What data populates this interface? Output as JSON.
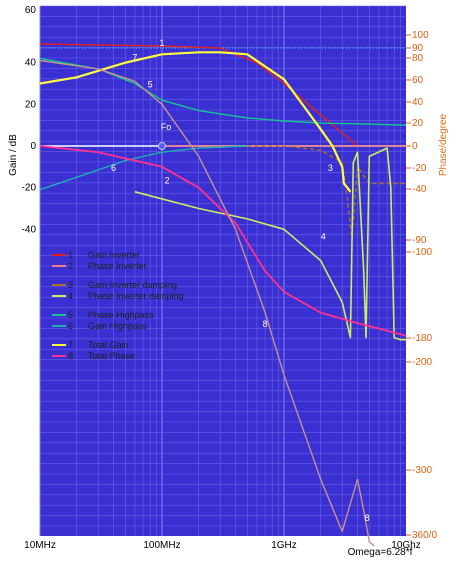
{
  "chart_data": {
    "type": "line",
    "left_axis": {
      "label": "Gain / dB",
      "ticks": [
        60,
        40,
        20,
        0,
        -20,
        -40
      ]
    },
    "right_axis": {
      "label": "Phase/degree",
      "ticks": [
        "100",
        "90",
        "80",
        "60",
        "40",
        "20",
        "0",
        "-20",
        "-40",
        "-90",
        "-100",
        "-180",
        "-200",
        "-300",
        "360/0"
      ]
    },
    "x_axis": {
      "label": "Omega=6.28*f",
      "scale": "log",
      "ticks": [
        "10MHz",
        "100MHz",
        "1GHz",
        "10Ghz"
      ]
    },
    "grid": true,
    "annotation": "Fo",
    "legend": [
      {
        "num": "1",
        "name": "Gain Inverter",
        "color": "#e02020"
      },
      {
        "num": "2",
        "name": "Phase Inverter",
        "color": "#f08080"
      },
      {
        "num": "3",
        "name": "Gain Inverter damping",
        "color": "#b07020"
      },
      {
        "num": "4",
        "name": "Phase Inverter damping",
        "color": "#c8f060"
      },
      {
        "num": "5",
        "name": "Phase Highpass",
        "color": "#10c890"
      },
      {
        "num": "6",
        "name": "Gain Highpass",
        "color": "#20b0b0"
      },
      {
        "num": "7",
        "name": "Total Gain",
        "color": "#ffff40"
      },
      {
        "num": "8",
        "name": "Total Phase",
        "color": "#ff3090"
      }
    ],
    "series": [
      {
        "id": "1",
        "color": "#e02020",
        "width": 1.4,
        "axis": "gain",
        "x": [
          10000000,
          30000000,
          100000000,
          300000000,
          600000000,
          1000000000,
          2000000000,
          4000000000
        ],
        "y": [
          49,
          48.5,
          48,
          47,
          40,
          30,
          15,
          0
        ]
      },
      {
        "id": "2",
        "color": "#f08080",
        "width": 1.4,
        "axis": "gain",
        "x": [
          100000000,
          1000000000,
          4000000000,
          10000000000
        ],
        "y": [
          0,
          0,
          0,
          0
        ]
      },
      {
        "id": "3",
        "color": "#b07020",
        "width": 1.4,
        "dash": "4,3",
        "axis": "gain",
        "x": [
          500000000,
          1000000000,
          2000000000,
          3000000000,
          3300000000,
          3600000000,
          4000000000,
          5000000000,
          10000000000
        ],
        "y": [
          0,
          0,
          -2,
          -8,
          -25,
          -45,
          -10,
          -18,
          -18
        ]
      },
      {
        "id": "4",
        "color": "#c8f060",
        "width": 1.6,
        "axis": "gain",
        "x": [
          60000000,
          200000000,
          500000000,
          1000000000,
          2000000000,
          3000000000,
          3500000000,
          3700000000,
          4000000000,
          4500000000,
          4700000000,
          5000000000,
          7000000000,
          7500000000,
          8000000000,
          9000000000,
          10000000000
        ],
        "y": [
          -22,
          -30,
          -35,
          -40,
          -55,
          -75,
          -92,
          -8,
          -3,
          -60,
          -92,
          -5,
          -1,
          -20,
          -92,
          -93,
          -93
        ]
      },
      {
        "id": "5",
        "color": "#10c890",
        "width": 1.4,
        "axis": "gain",
        "x": [
          10000000,
          30000000,
          60000000,
          100000000,
          200000000,
          500000000,
          1000000000,
          2000000000,
          5000000000,
          10000000000
        ],
        "y": [
          42,
          37,
          30,
          22,
          17,
          13.5,
          12,
          11,
          10.5,
          10
        ]
      },
      {
        "id": "6",
        "color": "#20b0b0",
        "width": 1.4,
        "axis": "gain",
        "x": [
          10000000,
          20000000,
          50000000,
          100000000,
          200000000,
          500000000
        ],
        "y": [
          -21,
          -15,
          -7,
          -3,
          -1,
          0
        ]
      },
      {
        "id": "7",
        "color": "#ffff40",
        "width": 2.2,
        "axis": "gain",
        "x": [
          10000000,
          20000000,
          50000000,
          100000000,
          200000000,
          300000000,
          500000000,
          1000000000,
          1500000000,
          2000000000,
          2500000000,
          3000000000,
          3100000000,
          3300000000,
          3500000000
        ],
        "y": [
          30,
          33,
          40,
          44,
          45,
          45,
          44,
          32,
          18,
          8,
          0,
          -10,
          -18,
          -20,
          -22
        ]
      },
      {
        "id": "8",
        "color": "#ff3090",
        "width": 1.8,
        "axis": "gain",
        "x": [
          10000000,
          30000000,
          100000000,
          200000000,
          400000000,
          700000000,
          1000000000,
          2000000000,
          4000000000,
          10000000000
        ],
        "y": [
          0,
          -3,
          -10,
          -20,
          -37,
          -60,
          -70,
          -80,
          -85,
          -91
        ]
      },
      {
        "id": "8b",
        "color": "#c89090",
        "width": 1.4,
        "axis": "gain",
        "x": [
          10000000,
          30000000,
          60000000,
          100000000,
          200000000,
          400000000,
          700000000,
          1000000000,
          2000000000,
          3000000000,
          4000000000,
          4500000000,
          5000000000,
          5500000000
        ],
        "y": [
          41,
          37,
          31,
          20,
          -5,
          -40,
          -80,
          -110,
          -160,
          -185,
          -160,
          -175,
          -190,
          -192
        ]
      }
    ],
    "curve_labels": [
      {
        "text": "1",
        "x": 100000000,
        "y": 48
      },
      {
        "text": "7",
        "x": 60000000,
        "y": 41
      },
      {
        "text": "5",
        "x": 80000000,
        "y": 28
      },
      {
        "text": "2",
        "x": 110000000,
        "y": -18
      },
      {
        "text": "6",
        "x": 40000000,
        "y": -12
      },
      {
        "text": "3",
        "x": 2400000000,
        "y": -12
      },
      {
        "text": "4",
        "x": 2100000000,
        "y": -45
      },
      {
        "text": "8",
        "x": 700000000,
        "y": -87
      },
      {
        "text": "8",
        "x": 4800000000,
        "y": -180
      }
    ]
  }
}
